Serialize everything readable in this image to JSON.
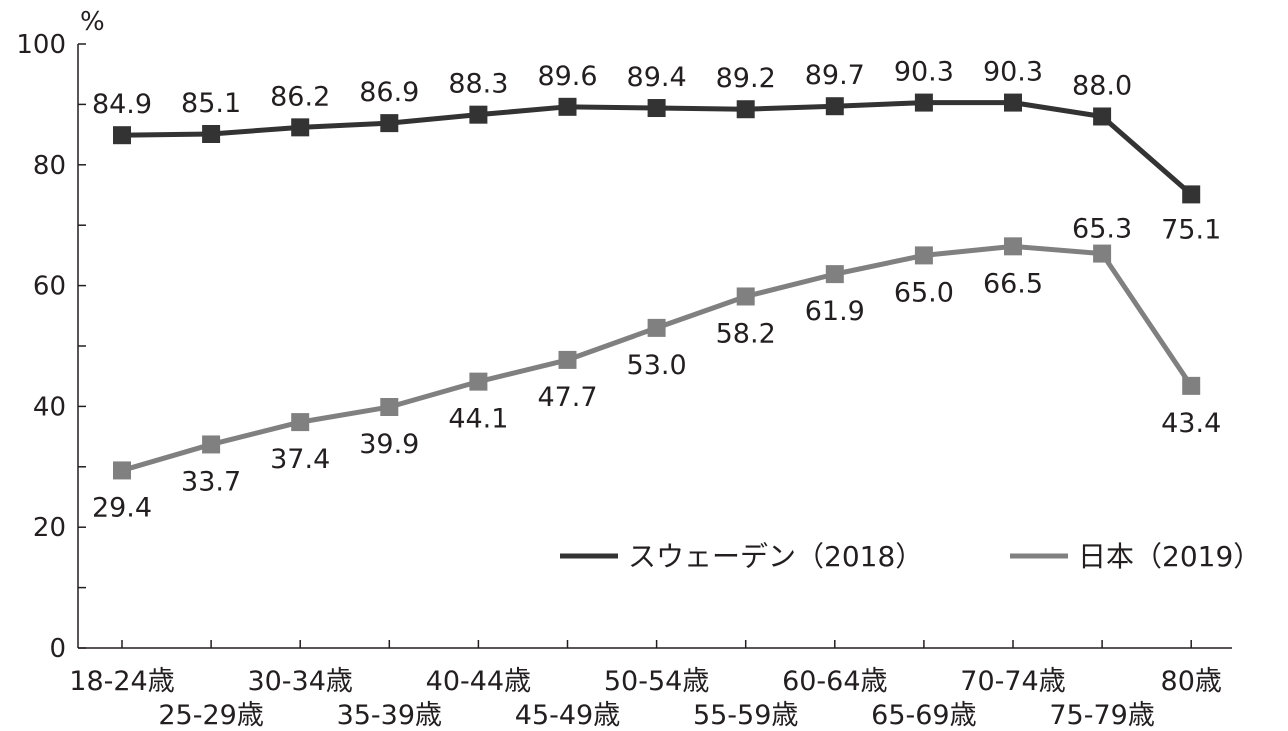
{
  "chart_data": {
    "type": "line",
    "unit": "%",
    "categories": [
      "18-24歳",
      "25-29歳",
      "30-34歳",
      "35-39歳",
      "40-44歳",
      "45-49歳",
      "50-54歳",
      "55-59歳",
      "60-64歳",
      "65-69歳",
      "70-74歳",
      "75-79歳",
      "80歳"
    ],
    "ylim": [
      0,
      100
    ],
    "yticks": [
      0,
      20,
      40,
      60,
      80,
      100
    ],
    "grid": false,
    "legend_position": "bottom-right",
    "series": [
      {
        "name": "スウェーデン（2018）",
        "color": "#333333",
        "marker": "square",
        "values": [
          84.9,
          85.1,
          86.2,
          86.9,
          88.3,
          89.6,
          89.4,
          89.2,
          89.7,
          90.3,
          90.3,
          88.0,
          75.1
        ],
        "labels": [
          "84.9",
          "85.1",
          "86.2",
          "86.9",
          "88.3",
          "89.6",
          "89.4",
          "89.2",
          "89.7",
          "90.3",
          "90.3",
          "88.0",
          "75.1"
        ]
      },
      {
        "name": "日本（2019）",
        "color": "#808080",
        "marker": "square",
        "values": [
          29.4,
          33.7,
          37.4,
          39.9,
          44.1,
          47.7,
          53.0,
          58.2,
          61.9,
          65.0,
          66.5,
          65.3,
          43.4
        ],
        "labels": [
          "29.4",
          "33.7",
          "37.4",
          "39.9",
          "44.1",
          "47.7",
          "53.0",
          "58.2",
          "61.9",
          "65.0",
          "66.5",
          "65.3",
          "43.4"
        ]
      }
    ]
  }
}
